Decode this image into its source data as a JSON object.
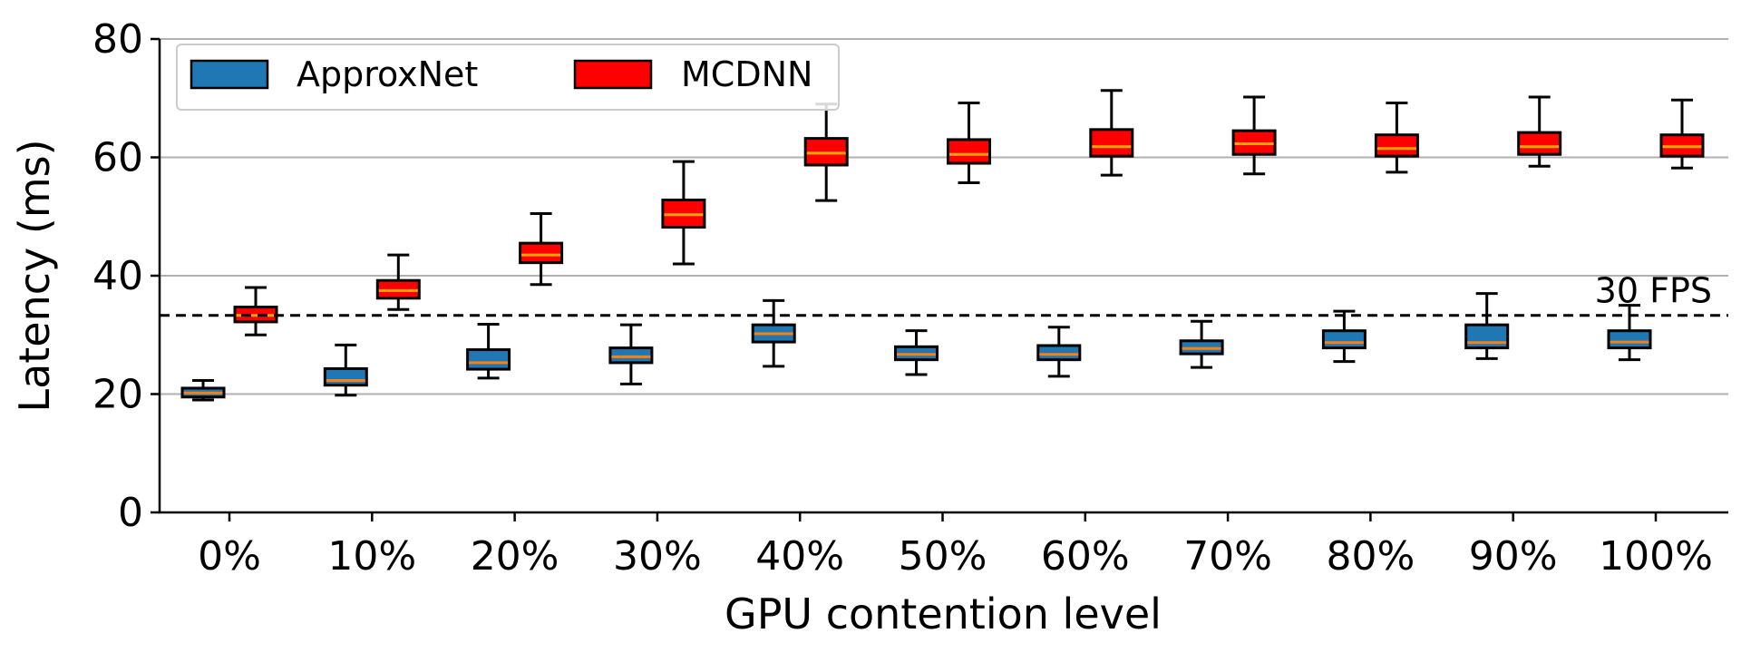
{
  "chart_data": {
    "type": "boxplot",
    "title": "",
    "xlabel": "GPU contention level",
    "ylabel": "Latency (ms)",
    "ylim": [
      0,
      80
    ],
    "yticks": [
      0,
      20,
      40,
      60,
      80
    ],
    "grid": "horizontal",
    "legend_position": "top-left",
    "categories": [
      "0%",
      "10%",
      "20%",
      "30%",
      "40%",
      "50%",
      "60%",
      "70%",
      "80%",
      "90%",
      "100%"
    ],
    "series": [
      {
        "name": "ApproxNet",
        "color": "#1f77b4",
        "median_color": "#ff7f0e",
        "boxes": [
          {
            "whislo": 19,
            "q1": 19.5,
            "med": 20.2,
            "q3": 21,
            "whishi": 22.3
          },
          {
            "whislo": 19.8,
            "q1": 21.5,
            "med": 22.3,
            "q3": 24.3,
            "whishi": 28.3
          },
          {
            "whislo": 22.7,
            "q1": 24.2,
            "med": 25.3,
            "q3": 27.5,
            "whishi": 31.8
          },
          {
            "whislo": 21.7,
            "q1": 25.3,
            "med": 26.3,
            "q3": 27.8,
            "whishi": 31.7
          },
          {
            "whislo": 24.7,
            "q1": 28.8,
            "med": 30.2,
            "q3": 31.7,
            "whishi": 35.8
          },
          {
            "whislo": 23.3,
            "q1": 25.8,
            "med": 26.7,
            "q3": 28,
            "whishi": 30.7
          },
          {
            "whislo": 23,
            "q1": 25.8,
            "med": 26.7,
            "q3": 28.2,
            "whishi": 31.3
          },
          {
            "whislo": 24.5,
            "q1": 26.8,
            "med": 27.7,
            "q3": 29,
            "whishi": 32.3
          },
          {
            "whislo": 25.5,
            "q1": 27.8,
            "med": 28.7,
            "q3": 30.7,
            "whishi": 34
          },
          {
            "whislo": 26,
            "q1": 27.8,
            "med": 28.7,
            "q3": 31.7,
            "whishi": 37
          },
          {
            "whislo": 25.8,
            "q1": 27.8,
            "med": 28.8,
            "q3": 30.7,
            "whishi": 35
          }
        ]
      },
      {
        "name": "MCDNN",
        "color": "#ff0000",
        "median_color": "#ffa500",
        "boxes": [
          {
            "whislo": 30,
            "q1": 32.2,
            "med": 33.3,
            "q3": 34.7,
            "whishi": 38
          },
          {
            "whislo": 34.3,
            "q1": 36.2,
            "med": 37.5,
            "q3": 39.2,
            "whishi": 43.5
          },
          {
            "whislo": 38.5,
            "q1": 42.2,
            "med": 43.5,
            "q3": 45.5,
            "whishi": 50.5
          },
          {
            "whislo": 42,
            "q1": 48.2,
            "med": 50.3,
            "q3": 52.8,
            "whishi": 59.3
          },
          {
            "whislo": 52.7,
            "q1": 58.7,
            "med": 60.7,
            "q3": 63.2,
            "whishi": 69
          },
          {
            "whislo": 55.7,
            "q1": 59,
            "med": 60.5,
            "q3": 63,
            "whishi": 69.2
          },
          {
            "whislo": 57,
            "q1": 60.2,
            "med": 61.8,
            "q3": 64.7,
            "whishi": 71.3
          },
          {
            "whislo": 57.2,
            "q1": 60.5,
            "med": 62.3,
            "q3": 64.5,
            "whishi": 70.2
          },
          {
            "whislo": 57.5,
            "q1": 60.2,
            "med": 61.5,
            "q3": 63.8,
            "whishi": 69.2
          },
          {
            "whislo": 58.5,
            "q1": 60.5,
            "med": 61.8,
            "q3": 64.2,
            "whishi": 70.2
          },
          {
            "whislo": 58.2,
            "q1": 60.2,
            "med": 61.8,
            "q3": 63.8,
            "whishi": 69.7
          }
        ]
      }
    ],
    "reference_line": {
      "value": 33.3,
      "label": "30 FPS",
      "style": "dashed"
    }
  }
}
